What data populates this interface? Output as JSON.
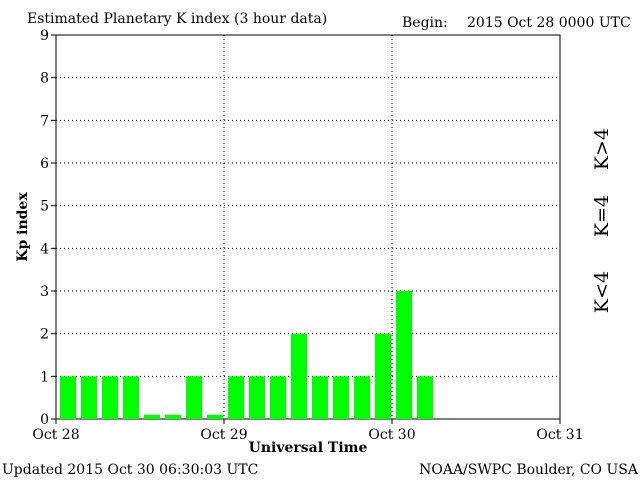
{
  "header": {
    "title": "Estimated Planetary K index (3 hour data)",
    "begin_label": "Begin:",
    "begin_value": "2015 Oct 28 0000 UTC"
  },
  "footer": {
    "updated": "Updated 2015 Oct 30 06:30:03 UTC",
    "source": "NOAA/SWPC Boulder, CO USA"
  },
  "legend": {
    "high": {
      "label": "K>4",
      "color": "#ff2a00"
    },
    "equal": {
      "label": "K=4",
      "color": "#ffd200"
    },
    "low": {
      "label": "K<4",
      "color": "#00ff00"
    }
  },
  "chart_data": {
    "type": "bar",
    "xlabel": "Universal Time",
    "ylabel": "Kp index",
    "ylim": [
      0,
      9
    ],
    "yticks": [
      "0",
      "1",
      "2",
      "3",
      "4",
      "5",
      "6",
      "7",
      "8",
      "9"
    ],
    "xticks": [
      "Oct 28",
      "Oct 29",
      "Oct 30",
      "Oct 31"
    ],
    "bins_per_day": 8,
    "total_bins": 24,
    "grid": "dotted at day boundaries and each integer Kp",
    "bar_color": "#00ff00",
    "values": [
      1,
      1,
      1,
      1,
      0.1,
      0.1,
      1,
      0.1,
      1,
      1,
      1,
      2,
      1,
      1,
      1,
      2,
      3,
      1
    ]
  }
}
